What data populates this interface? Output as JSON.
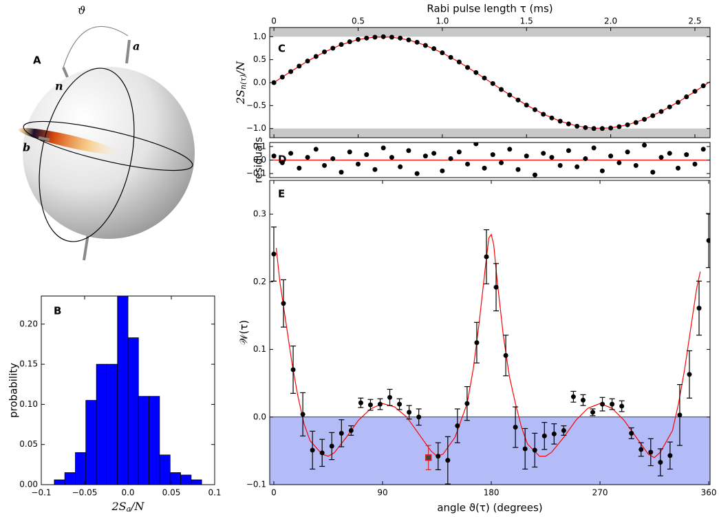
{
  "diagram": {
    "panel": "A",
    "angle": "ϑ",
    "vectors": [
      "a",
      "n",
      "b"
    ]
  },
  "chart_data": [
    {
      "type": "histogram",
      "panel": "B",
      "xlabel": {
        "main": "2S",
        "sub": "a",
        "tail": "/N"
      },
      "ylabel": "probability",
      "bins": [
        -0.085,
        -0.0729,
        -0.0607,
        -0.0486,
        -0.0364,
        -0.0243,
        -0.0121,
        0,
        0.0121,
        0.0243,
        0.0364,
        0.0486,
        0.0607,
        0.0729,
        0.085
      ],
      "counts": [
        0.006,
        0.015,
        0.04,
        0.105,
        0.15,
        0.15,
        0.235,
        0.183,
        0.11,
        0.11,
        0.037,
        0.015,
        0.012,
        0.006
      ],
      "color": "#0000ff",
      "xlim": [
        -0.1,
        0.1
      ],
      "ylim": [
        0,
        0.235
      ],
      "xticks": [
        {
          "value": -0.1,
          "label": "−0.1"
        },
        {
          "value": -0.05,
          "label": "−0.05"
        },
        {
          "value": 0,
          "label": "0.0"
        },
        0.05,
        0.1
      ],
      "yticks": [
        {
          "value": 0,
          "label": "0.00"
        },
        0.05,
        {
          "value": 0.1,
          "label": "0.10"
        },
        0.15,
        {
          "value": 0.2,
          "label": "0.20"
        }
      ]
    },
    {
      "type": "scatter",
      "panel": "C",
      "xlabel": "Rabi pulse length τ (ms)",
      "ylabel": {
        "main": "2S",
        "sub": "n(τ)",
        "tail": "/N"
      },
      "xaxis": "top",
      "x": [
        0,
        0.05,
        0.1,
        0.15,
        0.2,
        0.25,
        0.3,
        0.35,
        0.4,
        0.45,
        0.5,
        0.55,
        0.6,
        0.65,
        0.7,
        0.75,
        0.8,
        0.85,
        0.9,
        0.95,
        1.0,
        1.05,
        1.1,
        1.15,
        1.2,
        1.25,
        1.3,
        1.35,
        1.4,
        1.45,
        1.5,
        1.55,
        1.6,
        1.65,
        1.7,
        1.75,
        1.8,
        1.85,
        1.9,
        1.95,
        2.0,
        2.05,
        2.1,
        2.15,
        2.2,
        2.25,
        2.3,
        2.35,
        2.4,
        2.45,
        2.5,
        2.55
      ],
      "values": [
        0,
        0.12,
        0.24,
        0.36,
        0.47,
        0.57,
        0.67,
        0.75,
        0.83,
        0.89,
        0.94,
        0.97,
        0.99,
        1.0,
        0.99,
        0.97,
        0.93,
        0.88,
        0.81,
        0.74,
        0.65,
        0.55,
        0.45,
        0.33,
        0.22,
        0.1,
        -0.02,
        -0.15,
        -0.27,
        -0.38,
        -0.49,
        -0.59,
        -0.69,
        -0.77,
        -0.84,
        -0.9,
        -0.95,
        -0.98,
        -1.0,
        -1.0,
        -0.99,
        -0.96,
        -0.92,
        -0.87,
        -0.8,
        -0.72,
        -0.63,
        -0.53,
        -0.43,
        -0.31,
        -0.19,
        -0.07
      ],
      "color": "#000000",
      "fit": {
        "x": [
          0,
          0.1,
          0.2,
          0.3,
          0.4,
          0.5,
          0.6,
          0.7,
          0.8,
          0.9,
          1.0,
          1.1,
          1.2,
          1.3,
          1.4,
          1.5,
          1.6,
          1.7,
          1.8,
          1.9,
          2.0,
          2.1,
          2.2,
          2.3,
          2.4,
          2.5,
          2.59
        ],
        "values": [
          0,
          0.241,
          0.468,
          0.667,
          0.827,
          0.938,
          0.994,
          0.991,
          0.93,
          0.813,
          0.649,
          0.446,
          0.217,
          -0.024,
          -0.265,
          -0.489,
          -0.685,
          -0.841,
          -0.946,
          -0.996,
          -0.987,
          -0.92,
          -0.799,
          -0.63,
          -0.425,
          -0.194,
          0.02
        ],
        "color": "#ff0000"
      },
      "bands": [
        {
          "from": 1.0,
          "to": 1.2
        },
        {
          "from": -1.2,
          "to": -1.0
        }
      ],
      "band_color": "#c8c8c8",
      "xlim": [
        -0.025,
        2.59
      ],
      "ylim": [
        -1.2,
        1.2
      ],
      "xticks": [
        0,
        0.5,
        {
          "value": 1,
          "label": "1.0"
        },
        1.5,
        {
          "value": 2,
          "label": "2.0"
        },
        2.5
      ],
      "yticks": [
        {
          "value": -1,
          "label": "−1.0"
        },
        {
          "value": -0.5,
          "label": "−0.5"
        },
        {
          "value": 0,
          "label": "0.0"
        },
        0.5,
        {
          "value": 1,
          "label": "1.0"
        }
      ]
    },
    {
      "type": "scatter",
      "panel": "D",
      "ylabel": "residuals",
      "x": [
        0,
        0.05,
        0.1,
        0.15,
        0.2,
        0.25,
        0.3,
        0.35,
        0.4,
        0.45,
        0.5,
        0.55,
        0.6,
        0.65,
        0.7,
        0.75,
        0.8,
        0.85,
        0.9,
        0.95,
        1.0,
        1.05,
        1.1,
        1.15,
        1.2,
        1.25,
        1.3,
        1.35,
        1.4,
        1.45,
        1.5,
        1.55,
        1.6,
        1.65,
        1.7,
        1.75,
        1.8,
        1.85,
        1.9,
        1.95,
        2.0,
        2.05,
        2.1,
        2.15,
        2.2,
        2.25,
        2.3,
        2.35,
        2.4,
        2.45,
        2.5,
        2.55
      ],
      "values": [
        0.03,
        -0.02,
        0.05,
        -0.06,
        0.02,
        0.08,
        -0.04,
        0.01,
        -0.09,
        0.06,
        -0.03,
        0.04,
        -0.07,
        0.09,
        0.02,
        -0.05,
        0.07,
        -0.1,
        0.03,
        0.05,
        -0.08,
        0.01,
        0.06,
        -0.03,
        0.12,
        -0.06,
        0.04,
        -0.02,
        0.08,
        -0.07,
        0.03,
        -0.11,
        0.05,
        0.02,
        -0.04,
        0.07,
        -0.05,
        0.01,
        0.09,
        -0.08,
        0.03,
        -0.02,
        0.06,
        -0.04,
        0.11,
        -0.09,
        0.02,
        0.05,
        -0.06,
        0.04,
        -0.03,
        0.08
      ],
      "color": "#000000",
      "fit": {
        "x": [
          -0.025,
          2.59
        ],
        "values": [
          0,
          0
        ],
        "color": "#ff0000"
      },
      "xlim": [
        -0.025,
        2.59
      ],
      "ylim": [
        -0.13,
        0.13
      ],
      "yticks": [
        {
          "value": -0.1,
          "label": "−0.1"
        },
        {
          "value": 0,
          "label": "0.0"
        },
        0.1
      ]
    },
    {
      "type": "errorbar",
      "panel": "E",
      "xlabel": "angle ϑ(τ) (degrees)",
      "ylabel": "𝒲(τ)",
      "series": [
        {
          "x": [
            0,
            8,
            16,
            24,
            32,
            40,
            48,
            56,
            64,
            72,
            80,
            88,
            96,
            104,
            112,
            120,
            136,
            144,
            152,
            160,
            168,
            176,
            184,
            192,
            200,
            208,
            216,
            224,
            232,
            240,
            248,
            256,
            264,
            272,
            280,
            288,
            296,
            304,
            312,
            320,
            328,
            336,
            344,
            352,
            360
          ],
          "values": [
            0.241,
            0.168,
            0.07,
            0.004,
            -0.049,
            -0.053,
            -0.043,
            -0.024,
            -0.02,
            0.021,
            0.018,
            0.019,
            0.029,
            0.019,
            0.007,
            0.0,
            -0.058,
            -0.064,
            -0.013,
            0.02,
            0.11,
            0.237,
            0.192,
            0.091,
            -0.015,
            -0.047,
            -0.049,
            -0.028,
            -0.025,
            -0.02,
            0.03,
            0.025,
            0.007,
            0.019,
            0.019,
            0.016,
            -0.024,
            -0.048,
            -0.052,
            -0.067,
            -0.057,
            0.003,
            0.063,
            0.161,
            0.261
          ],
          "errors": [
            0.04,
            0.035,
            0.035,
            0.032,
            0.028,
            0.02,
            0.02,
            0.02,
            0.007,
            0.007,
            0.008,
            0.008,
            0.012,
            0.008,
            0.01,
            0.012,
            0.02,
            0.035,
            0.025,
            0.025,
            0.03,
            0.04,
            0.035,
            0.03,
            0.03,
            0.03,
            0.025,
            0.02,
            0.015,
            0.007,
            0.008,
            0.008,
            0.005,
            0.01,
            0.008,
            0.008,
            0.008,
            0.01,
            0.02,
            0.02,
            0.02,
            0.045,
            0.035,
            0.04,
            0.04
          ],
          "color": "#000000",
          "marker": "circle"
        },
        {
          "x": [
            128
          ],
          "values": [
            -0.06
          ],
          "errors": [
            0.018
          ],
          "color": "#d62728",
          "marker": "square"
        }
      ],
      "fit": {
        "x": [
          2,
          5,
          10,
          15,
          20,
          25,
          30,
          40,
          45,
          50,
          60,
          70,
          80,
          90,
          100,
          110,
          120,
          130,
          135,
          140,
          150,
          160,
          165,
          170,
          175,
          178,
          180,
          182,
          185,
          190,
          195,
          200,
          205,
          210,
          220,
          225,
          230,
          240,
          250,
          260,
          270,
          280,
          290,
          300,
          310,
          315,
          320,
          330,
          335,
          340,
          345,
          350,
          353
        ],
        "values": [
          0.25,
          0.2,
          0.14,
          0.08,
          0.03,
          -0.01,
          -0.035,
          -0.055,
          -0.058,
          -0.053,
          -0.03,
          -0.005,
          0.012,
          0.02,
          0.015,
          0.0,
          -0.025,
          -0.05,
          -0.058,
          -0.055,
          -0.03,
          0.02,
          0.07,
          0.14,
          0.22,
          0.265,
          0.27,
          0.255,
          0.2,
          0.12,
          0.06,
          0.02,
          -0.015,
          -0.04,
          -0.058,
          -0.058,
          -0.052,
          -0.03,
          -0.005,
          0.013,
          0.02,
          0.013,
          -0.005,
          -0.03,
          -0.055,
          -0.06,
          -0.052,
          -0.02,
          0.02,
          0.07,
          0.13,
          0.19,
          0.215
        ],
        "color": "#ff0000"
      },
      "bands": [
        {
          "from": -0.1,
          "to": 0
        }
      ],
      "band_color": "#b3bcf6",
      "xlim": [
        -3.4,
        361.1
      ],
      "ylim": [
        -0.1,
        0.35
      ],
      "xticks": [
        0,
        90,
        180,
        270,
        360
      ],
      "yticks": [
        {
          "value": -0.1,
          "label": "−0.1"
        },
        {
          "value": 0,
          "label": "0.0"
        },
        0.1,
        0.2,
        0.3
      ]
    }
  ]
}
